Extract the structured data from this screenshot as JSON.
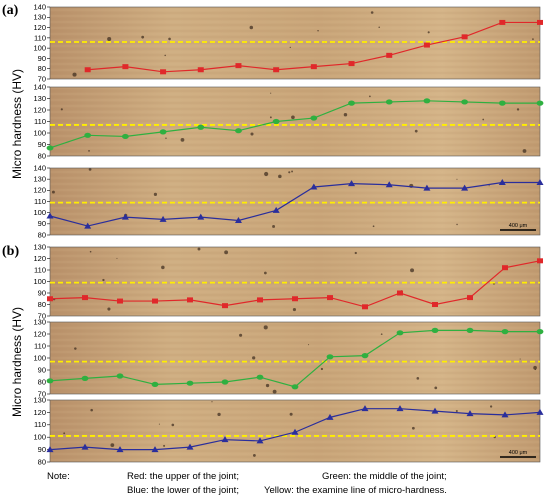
{
  "figure": {
    "label_a": "(a)",
    "label_b": "(b)",
    "ylabel": "Micro hardness (HV)",
    "scale_bar": "400 μm",
    "note_label": "Note:",
    "note_red": "Red: the upper of the joint;",
    "note_green": "Green: the middle of the joint;",
    "note_blue": "Blue: the lower of the joint;",
    "note_yellow": "Yellow: the examine line of micro-hardness."
  },
  "colors": {
    "red": "#e0282a",
    "green": "#2fb040",
    "blue": "#2a2e9c",
    "yellow": "#ffee00",
    "metal": "#c9a476"
  },
  "chart_data": [
    {
      "type": "line",
      "panel": "(a)",
      "series_color": "red",
      "marker": "square",
      "yticks": [
        70,
        80,
        90,
        100,
        110,
        120,
        130,
        140
      ],
      "ylim": [
        70,
        140
      ],
      "x": [
        1,
        2,
        3,
        4,
        5,
        6,
        7,
        8,
        9,
        10,
        11,
        12,
        13
      ],
      "values": [
        79,
        82,
        77,
        79,
        83,
        79,
        82,
        85,
        93,
        103,
        111,
        125,
        125
      ],
      "reference_line": 106
    },
    {
      "type": "line",
      "panel": "(a)",
      "series_color": "green",
      "marker": "circle",
      "yticks": [
        80,
        90,
        100,
        110,
        120,
        130,
        140
      ],
      "ylim": [
        80,
        140
      ],
      "x": [
        0,
        1,
        2,
        3,
        4,
        5,
        6,
        7,
        8,
        9,
        10,
        11,
        12,
        13
      ],
      "values": [
        87,
        98,
        97,
        101,
        105,
        102,
        110,
        113,
        126,
        127,
        128,
        127,
        126,
        126
      ],
      "reference_line": 107
    },
    {
      "type": "line",
      "panel": "(a)",
      "series_color": "blue",
      "marker": "triangle",
      "yticks": [
        80,
        90,
        100,
        110,
        120,
        130,
        140
      ],
      "ylim": [
        80,
        140
      ],
      "x": [
        0,
        1,
        2,
        3,
        4,
        5,
        6,
        7,
        8,
        9,
        10,
        11,
        12,
        13
      ],
      "values": [
        97,
        88,
        96,
        94,
        96,
        93,
        102,
        123,
        126,
        125,
        122,
        122,
        127,
        127
      ],
      "reference_line": 109
    },
    {
      "type": "line",
      "panel": "(b)",
      "series_color": "red",
      "marker": "square",
      "yticks": [
        70,
        80,
        90,
        100,
        110,
        120,
        130
      ],
      "ylim": [
        70,
        130
      ],
      "x": [
        0,
        1,
        2,
        3,
        4,
        5,
        6,
        7,
        8,
        9,
        10,
        11,
        12,
        13,
        14
      ],
      "values": [
        85,
        86,
        83,
        83,
        84,
        79,
        84,
        85,
        86,
        78,
        90,
        80,
        86,
        112,
        118
      ],
      "reference_line": 99
    },
    {
      "type": "line",
      "panel": "(b)",
      "series_color": "green",
      "marker": "circle",
      "yticks": [
        70,
        80,
        90,
        100,
        110,
        120,
        130
      ],
      "ylim": [
        70,
        130
      ],
      "x": [
        0,
        1,
        2,
        3,
        4,
        5,
        6,
        7,
        8,
        9,
        10,
        11,
        12,
        13,
        14
      ],
      "values": [
        81,
        83,
        85,
        78,
        79,
        80,
        84,
        76,
        101,
        102,
        121,
        123,
        123,
        122,
        122
      ],
      "reference_line": 97
    },
    {
      "type": "line",
      "panel": "(b)",
      "series_color": "blue",
      "marker": "triangle",
      "yticks": [
        80,
        90,
        100,
        110,
        120,
        130
      ],
      "ylim": [
        80,
        130
      ],
      "x": [
        0,
        1,
        2,
        3,
        4,
        5,
        6,
        7,
        8,
        9,
        10,
        11,
        12,
        13,
        14
      ],
      "values": [
        90,
        92,
        90,
        90,
        92,
        98,
        97,
        104,
        116,
        123,
        123,
        121,
        119,
        118,
        120
      ],
      "reference_line": 101
    }
  ]
}
